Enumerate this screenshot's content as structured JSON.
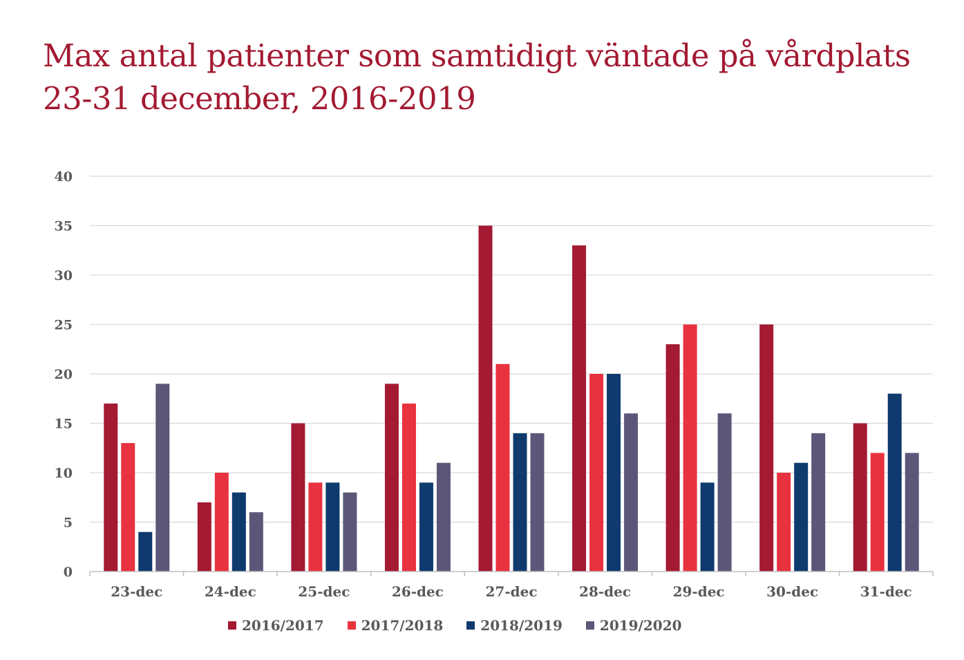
{
  "chart_data": {
    "type": "bar",
    "title": "Max antal patienter som samtidigt väntade på vårdplats",
    "subtitle": "23-31 december, 2016-2019",
    "categories": [
      "23-dec",
      "24-dec",
      "25-dec",
      "26-dec",
      "27-dec",
      "28-dec",
      "29-dec",
      "30-dec",
      "31-dec"
    ],
    "series": [
      {
        "name": "2016/2017",
        "color": "#a31a32",
        "values": [
          17,
          7,
          15,
          19,
          35,
          33,
          23,
          25,
          15
        ]
      },
      {
        "name": "2017/2018",
        "color": "#e8323f",
        "values": [
          13,
          10,
          9,
          17,
          21,
          20,
          25,
          10,
          12
        ]
      },
      {
        "name": "2018/2019",
        "color": "#0f3a6e",
        "values": [
          4,
          8,
          9,
          9,
          14,
          20,
          9,
          11,
          18
        ]
      },
      {
        "name": "2019/2020",
        "color": "#5c5778",
        "values": [
          19,
          6,
          8,
          11,
          14,
          16,
          16,
          14,
          12
        ]
      }
    ],
    "ylim": [
      0,
      40
    ],
    "yticks": [
      0,
      5,
      10,
      15,
      20,
      25,
      30,
      35,
      40
    ],
    "grid": true,
    "legend_position": "bottom"
  }
}
